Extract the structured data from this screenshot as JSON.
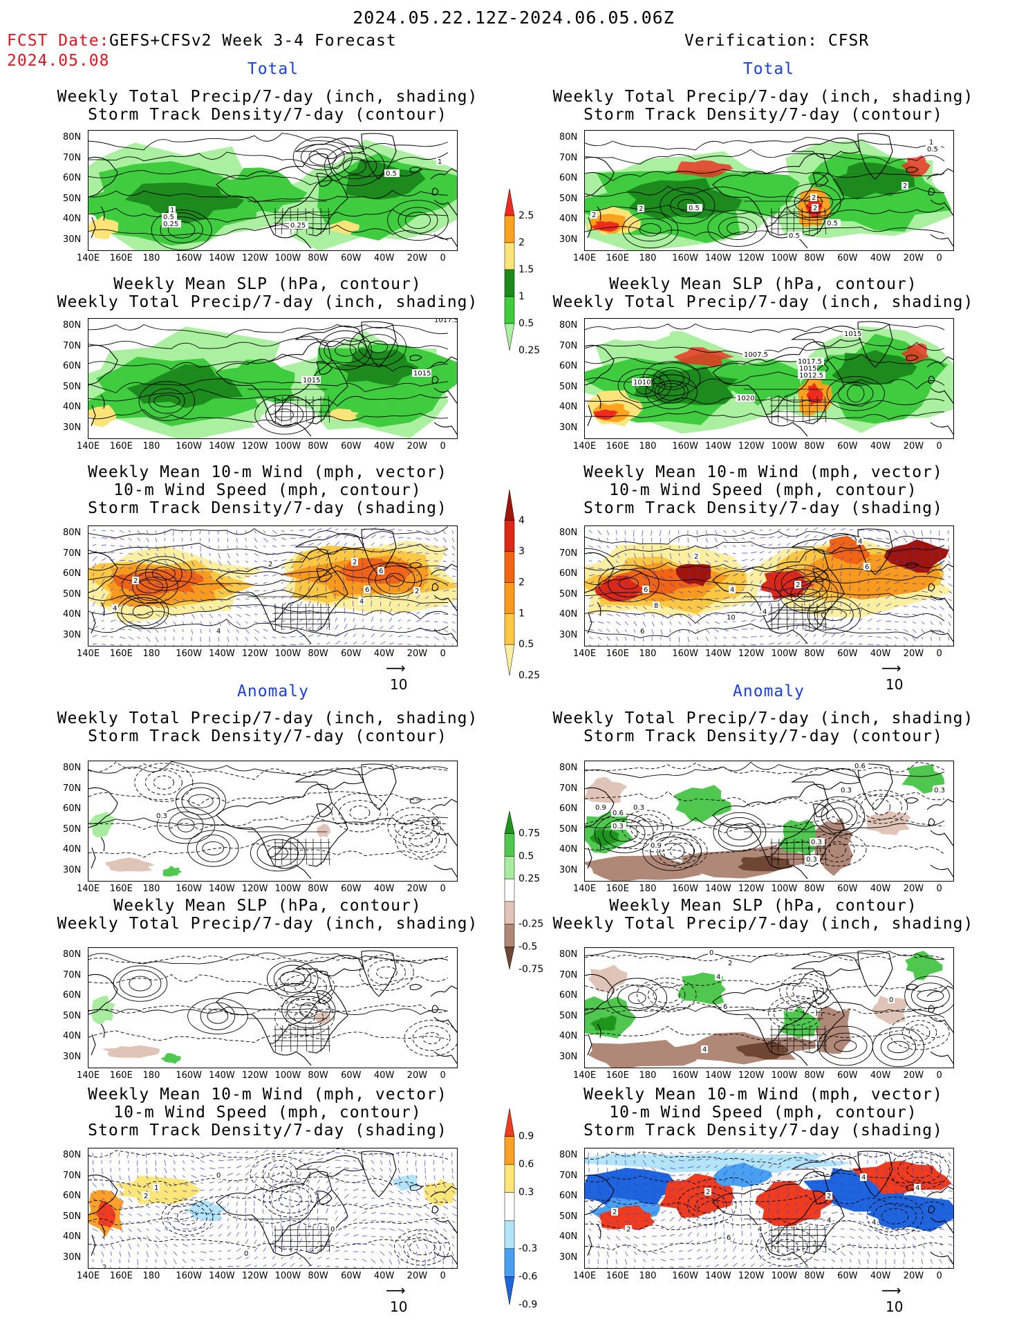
{
  "header": {
    "period": "2024.05.22.12Z-2024.06.05.06Z",
    "fcst_label": "FCST Date:",
    "fcst_date": "2024.05.08",
    "model": "GEFS+CFSv2 Week 3-4 Forecast",
    "verification": "Verification: CFSR"
  },
  "sections": {
    "total": "Total",
    "anomaly": "Anomaly"
  },
  "titles": {
    "precip_storm": [
      "Weekly Total Precip/7-day (inch, shading)",
      "Storm Track Density/7-day (contour)"
    ],
    "slp_precip": [
      "Weekly Mean SLP (hPa, contour)",
      "Weekly Total Precip/7-day (inch, shading)"
    ],
    "wind": [
      "Weekly Mean 10-m Wind (mph, vector)",
      "10-m Wind Speed (mph, contour)",
      "Storm Track Density/7-day (shading)"
    ]
  },
  "axes": {
    "lat_labels": [
      "80N",
      "70N",
      "60N",
      "50N",
      "40N",
      "30N"
    ],
    "lon_labels": [
      "140E",
      "160E",
      "180",
      "160W",
      "140W",
      "120W",
      "100W",
      "80W",
      "60W",
      "40W",
      "20W",
      "0"
    ]
  },
  "vector_ref": "10",
  "colorbars": {
    "total_precip": {
      "labels": [
        "2.5",
        "2",
        "1.5",
        "1",
        "0.5",
        "0.25"
      ],
      "colors": [
        "#f02a1e",
        "#fca21e",
        "#fde47a",
        "#1c8a1c",
        "#3fcc3f",
        "#aaf0a0"
      ]
    },
    "total_storm": {
      "labels": [
        "4",
        "3",
        "2",
        "1",
        "0.5",
        "0.25"
      ],
      "colors": [
        "#a0140a",
        "#dc2814",
        "#f06414",
        "#f89a1e",
        "#fcc844",
        "#fcf0a0"
      ]
    },
    "anom_precip": {
      "labels": [
        "0.75",
        "0.5",
        "0.25",
        "-0.25",
        "-0.5",
        "-0.75"
      ],
      "colors": [
        "#1e961e",
        "#50c850",
        "#a8eca0",
        "#ffffff",
        "#e0c4b8",
        "#b08878",
        "#6e4632"
      ]
    },
    "anom_storm": {
      "labels": [
        "0.9",
        "0.6",
        "0.3",
        "-0.3",
        "-0.6",
        "-0.9"
      ],
      "colors": [
        "#f03c1e",
        "#fca028",
        "#fce678",
        "#ffffff",
        "#b4e4f8",
        "#4aa0f0",
        "#1e64dc"
      ]
    }
  },
  "contour_labels": {
    "p1": [
      "1",
      "0.5",
      "1",
      "0.5",
      "0.25",
      "0.25"
    ],
    "p2": [
      "1017.5",
      "1015",
      "1015"
    ],
    "p3": [
      "2",
      "4",
      "2",
      "2",
      "4",
      "6",
      "6",
      "2",
      "4"
    ],
    "p4": [
      "0.5",
      "1",
      "2",
      "0.5",
      "0.5",
      "2",
      "2",
      "2",
      "0.5",
      "2"
    ],
    "p5": [
      "1015",
      "1007.5",
      "1017.5",
      "1015",
      "1012.5",
      "1010",
      "1020"
    ],
    "p6": [
      "6",
      "4",
      "2",
      "6",
      "2",
      "4",
      "4",
      "8",
      "10",
      "6"
    ],
    "p7": [
      "0.3"
    ],
    "p9": [
      "2",
      "1",
      "0",
      "0",
      "0",
      "2"
    ],
    "p10": [
      "0.6",
      "0.3",
      "0.6",
      "0.3",
      "0.9",
      "0.3",
      "0.9",
      "0.3",
      "0.3",
      "0.3"
    ],
    "p11": [
      "0",
      "2",
      "6",
      "4",
      "0",
      "4"
    ],
    "p12": [
      "2",
      "2",
      "4",
      "4",
      "2",
      "2",
      "4",
      "4",
      "4",
      "6"
    ]
  }
}
